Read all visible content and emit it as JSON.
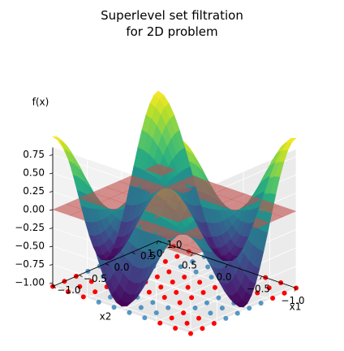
{
  "chart_data": {
    "type": "surface3d",
    "title_line1": "Superlevel set filtration",
    "title_line2": "for 2D problem",
    "zlabel": "f(x)",
    "xlabel": "x1",
    "ylabel": "x2",
    "x1_ticks": [
      "−1.0",
      "−0.5",
      "0.0",
      "0.5",
      "1.0"
    ],
    "x2_ticks": [
      "−1.0",
      "−0.5",
      "0.0",
      "0.5",
      "1.0"
    ],
    "z_ticks": [
      "0.75",
      "0.50",
      "0.25",
      "0.00",
      "−0.25",
      "−0.50",
      "−0.75",
      "−1.00"
    ],
    "x1_range": [
      -1,
      1
    ],
    "x2_range": [
      -1,
      1
    ],
    "z_range": [
      -1.05,
      0.85
    ],
    "function": "f(x1, x2) = cos(pi*x1) * cos(pi*x2) (approx.)",
    "threshold_plane_z": 0,
    "threshold_plane_color": "#c0504d",
    "colormap": "viridis",
    "grid_points_per_axis": 10,
    "sample_color": "#1f77b4",
    "superlevel_color": "#ff0000",
    "grid": true
  }
}
